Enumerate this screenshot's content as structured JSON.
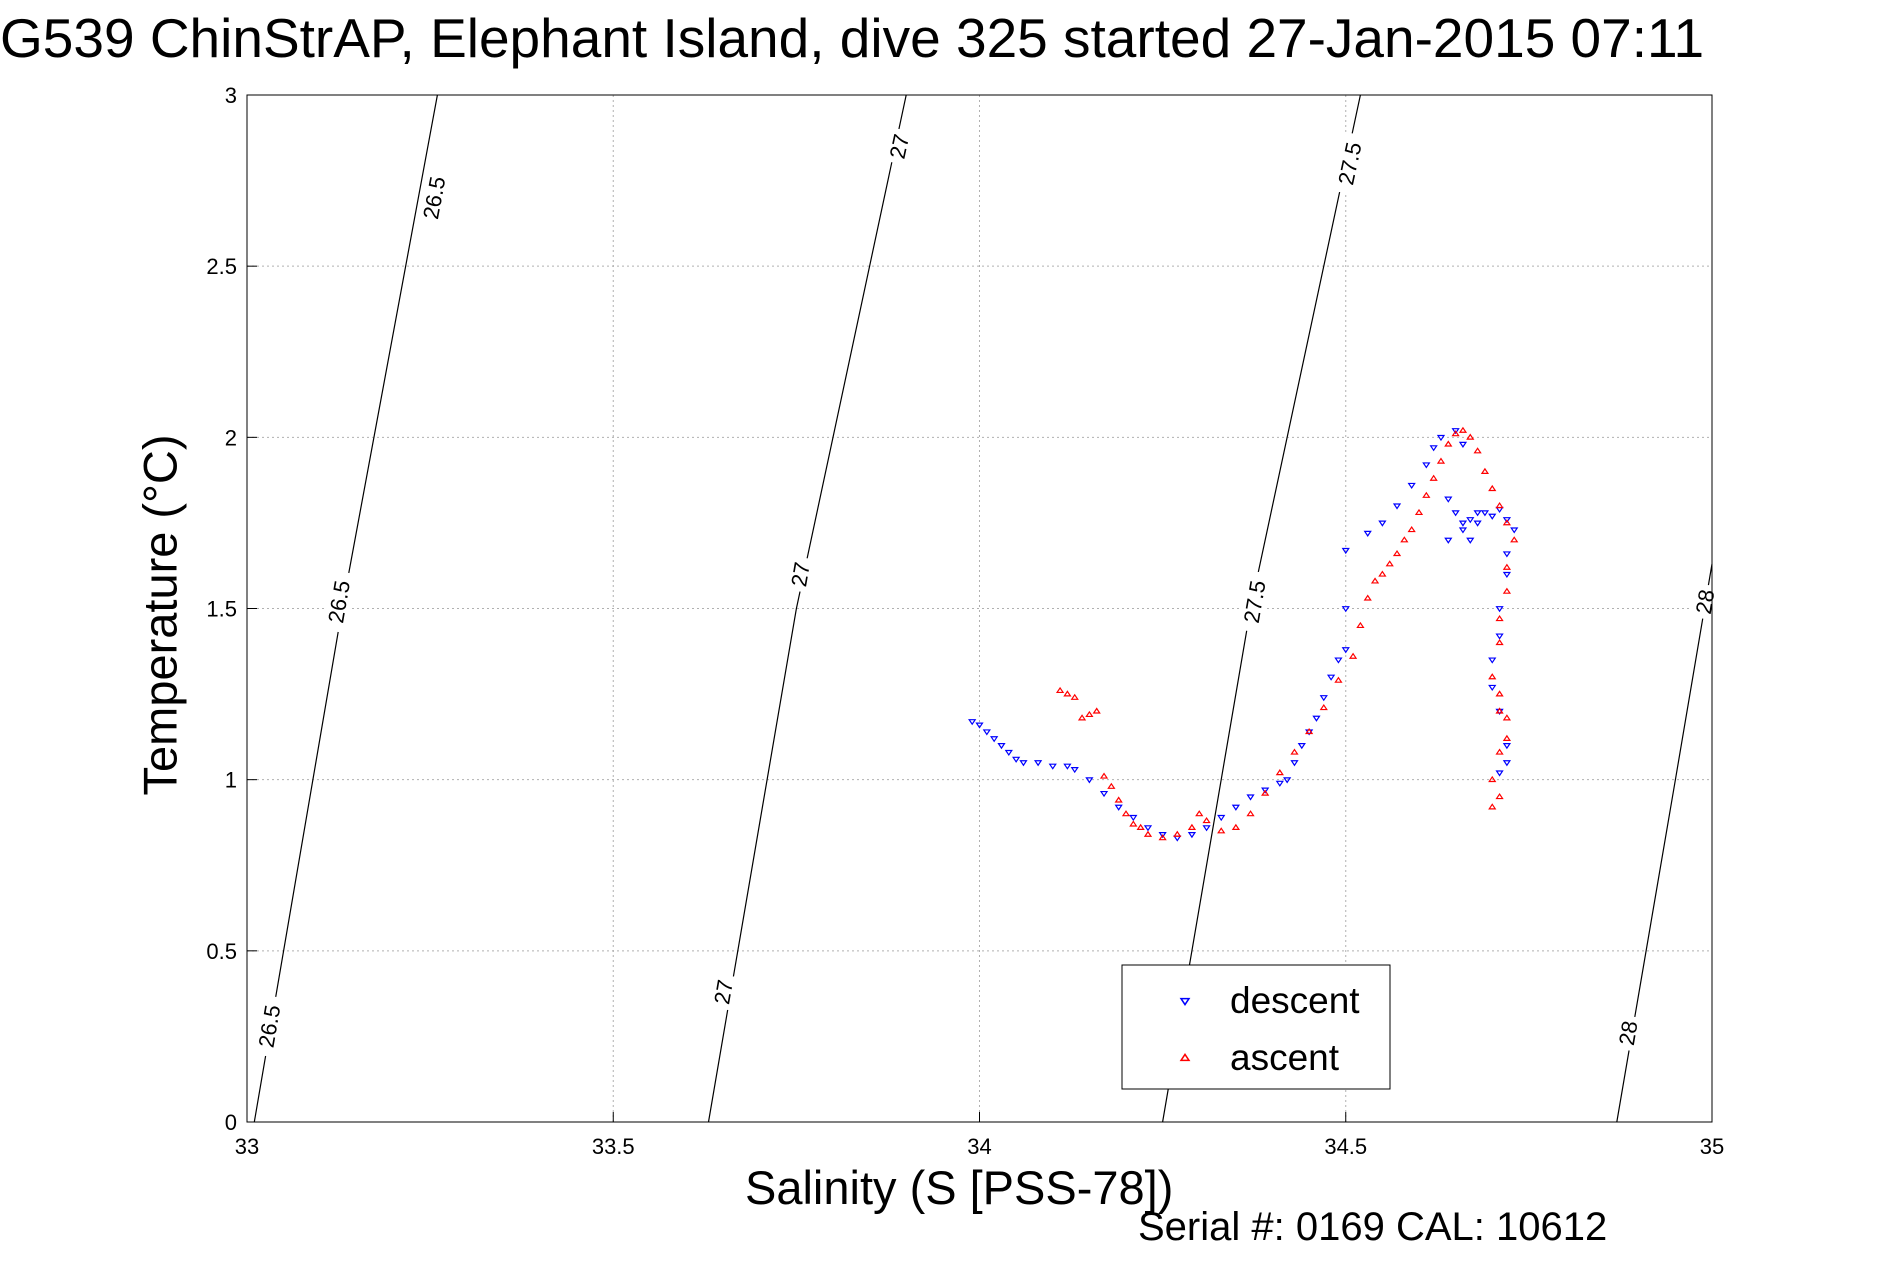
{
  "title": "G539 ChinStrAP, Elephant Island, dive 325 started 27-Jan-2015 07:11",
  "footer": {
    "serial": "Serial #: 0169 CAL: 10612"
  },
  "colors": {
    "descent": "#0000ff",
    "ascent": "#ff0000",
    "axes": "#000000",
    "grid": "#b0b0b0"
  },
  "chart_data": {
    "type": "scatter",
    "title": "G539 ChinStrAP, Elephant Island, dive 325 started 27-Jan-2015 07:11",
    "xlabel": "Salinity (S [PSS-78])",
    "ylabel": "Temperature (°C)",
    "xlim": [
      33,
      35
    ],
    "ylim": [
      0,
      3
    ],
    "xticks": [
      33,
      33.5,
      34,
      34.5,
      35
    ],
    "yticks": [
      0,
      0.5,
      1,
      1.5,
      2,
      2.5,
      3
    ],
    "xtick_labels": [
      "33",
      "33.5",
      "34",
      "34.5",
      "35"
    ],
    "ytick_labels": [
      "0",
      "0.5",
      "1",
      "1.5",
      "2",
      "2.5",
      "3"
    ],
    "grid": true,
    "legend": {
      "position": "bottom-center",
      "entries": [
        "descent",
        "ascent"
      ]
    },
    "contours": [
      {
        "level_label": "26.5",
        "points": [
          [
            33.01,
            0
          ],
          [
            33.13,
            1.5
          ],
          [
            33.26,
            3
          ]
        ],
        "label_positions": [
          [
            33.03,
            0.28
          ],
          [
            33.125,
            1.52
          ],
          [
            33.255,
            2.7
          ]
        ]
      },
      {
        "level_label": "27",
        "points": [
          [
            33.63,
            0
          ],
          [
            33.75,
            1.5
          ],
          [
            33.9,
            3
          ]
        ],
        "label_positions": [
          [
            33.65,
            0.38
          ],
          [
            33.755,
            1.6
          ],
          [
            33.89,
            2.85
          ]
        ]
      },
      {
        "level_label": "27.5",
        "points": [
          [
            34.25,
            0
          ],
          [
            34.37,
            1.5
          ],
          [
            34.52,
            3
          ]
        ],
        "label_positions": [
          [
            34.375,
            1.52
          ],
          [
            34.505,
            2.8
          ]
        ]
      },
      {
        "level_label": "28",
        "points": [
          [
            34.87,
            0
          ],
          [
            34.95,
            1
          ],
          [
            35,
            1.63
          ]
        ],
        "label_positions": [
          [
            34.885,
            0.26
          ],
          [
            34.99,
            1.52
          ]
        ]
      }
    ],
    "series": [
      {
        "name": "descent",
        "marker": "triangle-down",
        "color": "#0000ff",
        "points": [
          [
            33.99,
            1.17
          ],
          [
            34.0,
            1.16
          ],
          [
            34.01,
            1.14
          ],
          [
            34.02,
            1.12
          ],
          [
            34.03,
            1.1
          ],
          [
            34.04,
            1.08
          ],
          [
            34.05,
            1.06
          ],
          [
            34.06,
            1.05
          ],
          [
            34.08,
            1.05
          ],
          [
            34.1,
            1.04
          ],
          [
            34.12,
            1.04
          ],
          [
            34.13,
            1.03
          ],
          [
            34.15,
            1.0
          ],
          [
            34.17,
            0.96
          ],
          [
            34.19,
            0.92
          ],
          [
            34.21,
            0.89
          ],
          [
            34.23,
            0.86
          ],
          [
            34.25,
            0.84
          ],
          [
            34.27,
            0.83
          ],
          [
            34.29,
            0.84
          ],
          [
            34.31,
            0.86
          ],
          [
            34.33,
            0.89
          ],
          [
            34.35,
            0.92
          ],
          [
            34.37,
            0.95
          ],
          [
            34.39,
            0.97
          ],
          [
            34.41,
            0.99
          ],
          [
            34.42,
            1.0
          ],
          [
            34.43,
            1.05
          ],
          [
            34.44,
            1.1
          ],
          [
            34.45,
            1.14
          ],
          [
            34.46,
            1.18
          ],
          [
            34.47,
            1.24
          ],
          [
            34.48,
            1.3
          ],
          [
            34.49,
            1.35
          ],
          [
            34.5,
            1.38
          ],
          [
            34.5,
            1.5
          ],
          [
            34.5,
            1.67
          ],
          [
            34.53,
            1.72
          ],
          [
            34.55,
            1.75
          ],
          [
            34.57,
            1.8
          ],
          [
            34.59,
            1.86
          ],
          [
            34.61,
            1.92
          ],
          [
            34.62,
            1.97
          ],
          [
            34.63,
            2.0
          ],
          [
            34.65,
            2.02
          ],
          [
            34.66,
            1.98
          ],
          [
            34.64,
            1.82
          ],
          [
            34.65,
            1.78
          ],
          [
            34.66,
            1.75
          ],
          [
            34.67,
            1.76
          ],
          [
            34.68,
            1.75
          ],
          [
            34.64,
            1.7
          ],
          [
            34.66,
            1.73
          ],
          [
            34.67,
            1.7
          ],
          [
            34.68,
            1.78
          ],
          [
            34.69,
            1.78
          ],
          [
            34.7,
            1.77
          ],
          [
            34.71,
            1.79
          ],
          [
            34.72,
            1.76
          ],
          [
            34.73,
            1.73
          ],
          [
            34.72,
            1.66
          ],
          [
            34.72,
            1.6
          ],
          [
            34.71,
            1.5
          ],
          [
            34.71,
            1.42
          ],
          [
            34.7,
            1.35
          ],
          [
            34.7,
            1.27
          ],
          [
            34.71,
            1.2
          ],
          [
            34.72,
            1.1
          ],
          [
            34.72,
            1.05
          ],
          [
            34.71,
            1.02
          ]
        ]
      },
      {
        "name": "ascent",
        "marker": "triangle-up",
        "color": "#ff0000",
        "points": [
          [
            34.11,
            1.26
          ],
          [
            34.12,
            1.25
          ],
          [
            34.13,
            1.24
          ],
          [
            34.14,
            1.18
          ],
          [
            34.15,
            1.19
          ],
          [
            34.16,
            1.2
          ],
          [
            34.17,
            1.01
          ],
          [
            34.18,
            0.98
          ],
          [
            34.19,
            0.94
          ],
          [
            34.2,
            0.9
          ],
          [
            34.21,
            0.87
          ],
          [
            34.22,
            0.86
          ],
          [
            34.23,
            0.84
          ],
          [
            34.25,
            0.83
          ],
          [
            34.27,
            0.84
          ],
          [
            34.29,
            0.86
          ],
          [
            34.3,
            0.9
          ],
          [
            34.31,
            0.88
          ],
          [
            34.33,
            0.85
          ],
          [
            34.35,
            0.86
          ],
          [
            34.37,
            0.9
          ],
          [
            34.39,
            0.96
          ],
          [
            34.41,
            1.02
          ],
          [
            34.43,
            1.08
          ],
          [
            34.45,
            1.14
          ],
          [
            34.47,
            1.21
          ],
          [
            34.49,
            1.29
          ],
          [
            34.51,
            1.36
          ],
          [
            34.52,
            1.45
          ],
          [
            34.53,
            1.53
          ],
          [
            34.54,
            1.58
          ],
          [
            34.55,
            1.6
          ],
          [
            34.56,
            1.63
          ],
          [
            34.57,
            1.66
          ],
          [
            34.58,
            1.7
          ],
          [
            34.59,
            1.73
          ],
          [
            34.6,
            1.78
          ],
          [
            34.61,
            1.83
          ],
          [
            34.62,
            1.88
          ],
          [
            34.63,
            1.93
          ],
          [
            34.64,
            1.98
          ],
          [
            34.65,
            2.01
          ],
          [
            34.66,
            2.02
          ],
          [
            34.67,
            2.0
          ],
          [
            34.68,
            1.96
          ],
          [
            34.69,
            1.9
          ],
          [
            34.7,
            1.85
          ],
          [
            34.71,
            1.8
          ],
          [
            34.72,
            1.75
          ],
          [
            34.73,
            1.7
          ],
          [
            34.72,
            1.62
          ],
          [
            34.72,
            1.55
          ],
          [
            34.71,
            1.47
          ],
          [
            34.71,
            1.4
          ],
          [
            34.7,
            1.3
          ],
          [
            34.71,
            1.25
          ],
          [
            34.71,
            1.2
          ],
          [
            34.72,
            1.18
          ],
          [
            34.72,
            1.12
          ],
          [
            34.71,
            1.08
          ],
          [
            34.7,
            1.0
          ],
          [
            34.71,
            0.95
          ],
          [
            34.7,
            0.92
          ]
        ]
      }
    ]
  }
}
